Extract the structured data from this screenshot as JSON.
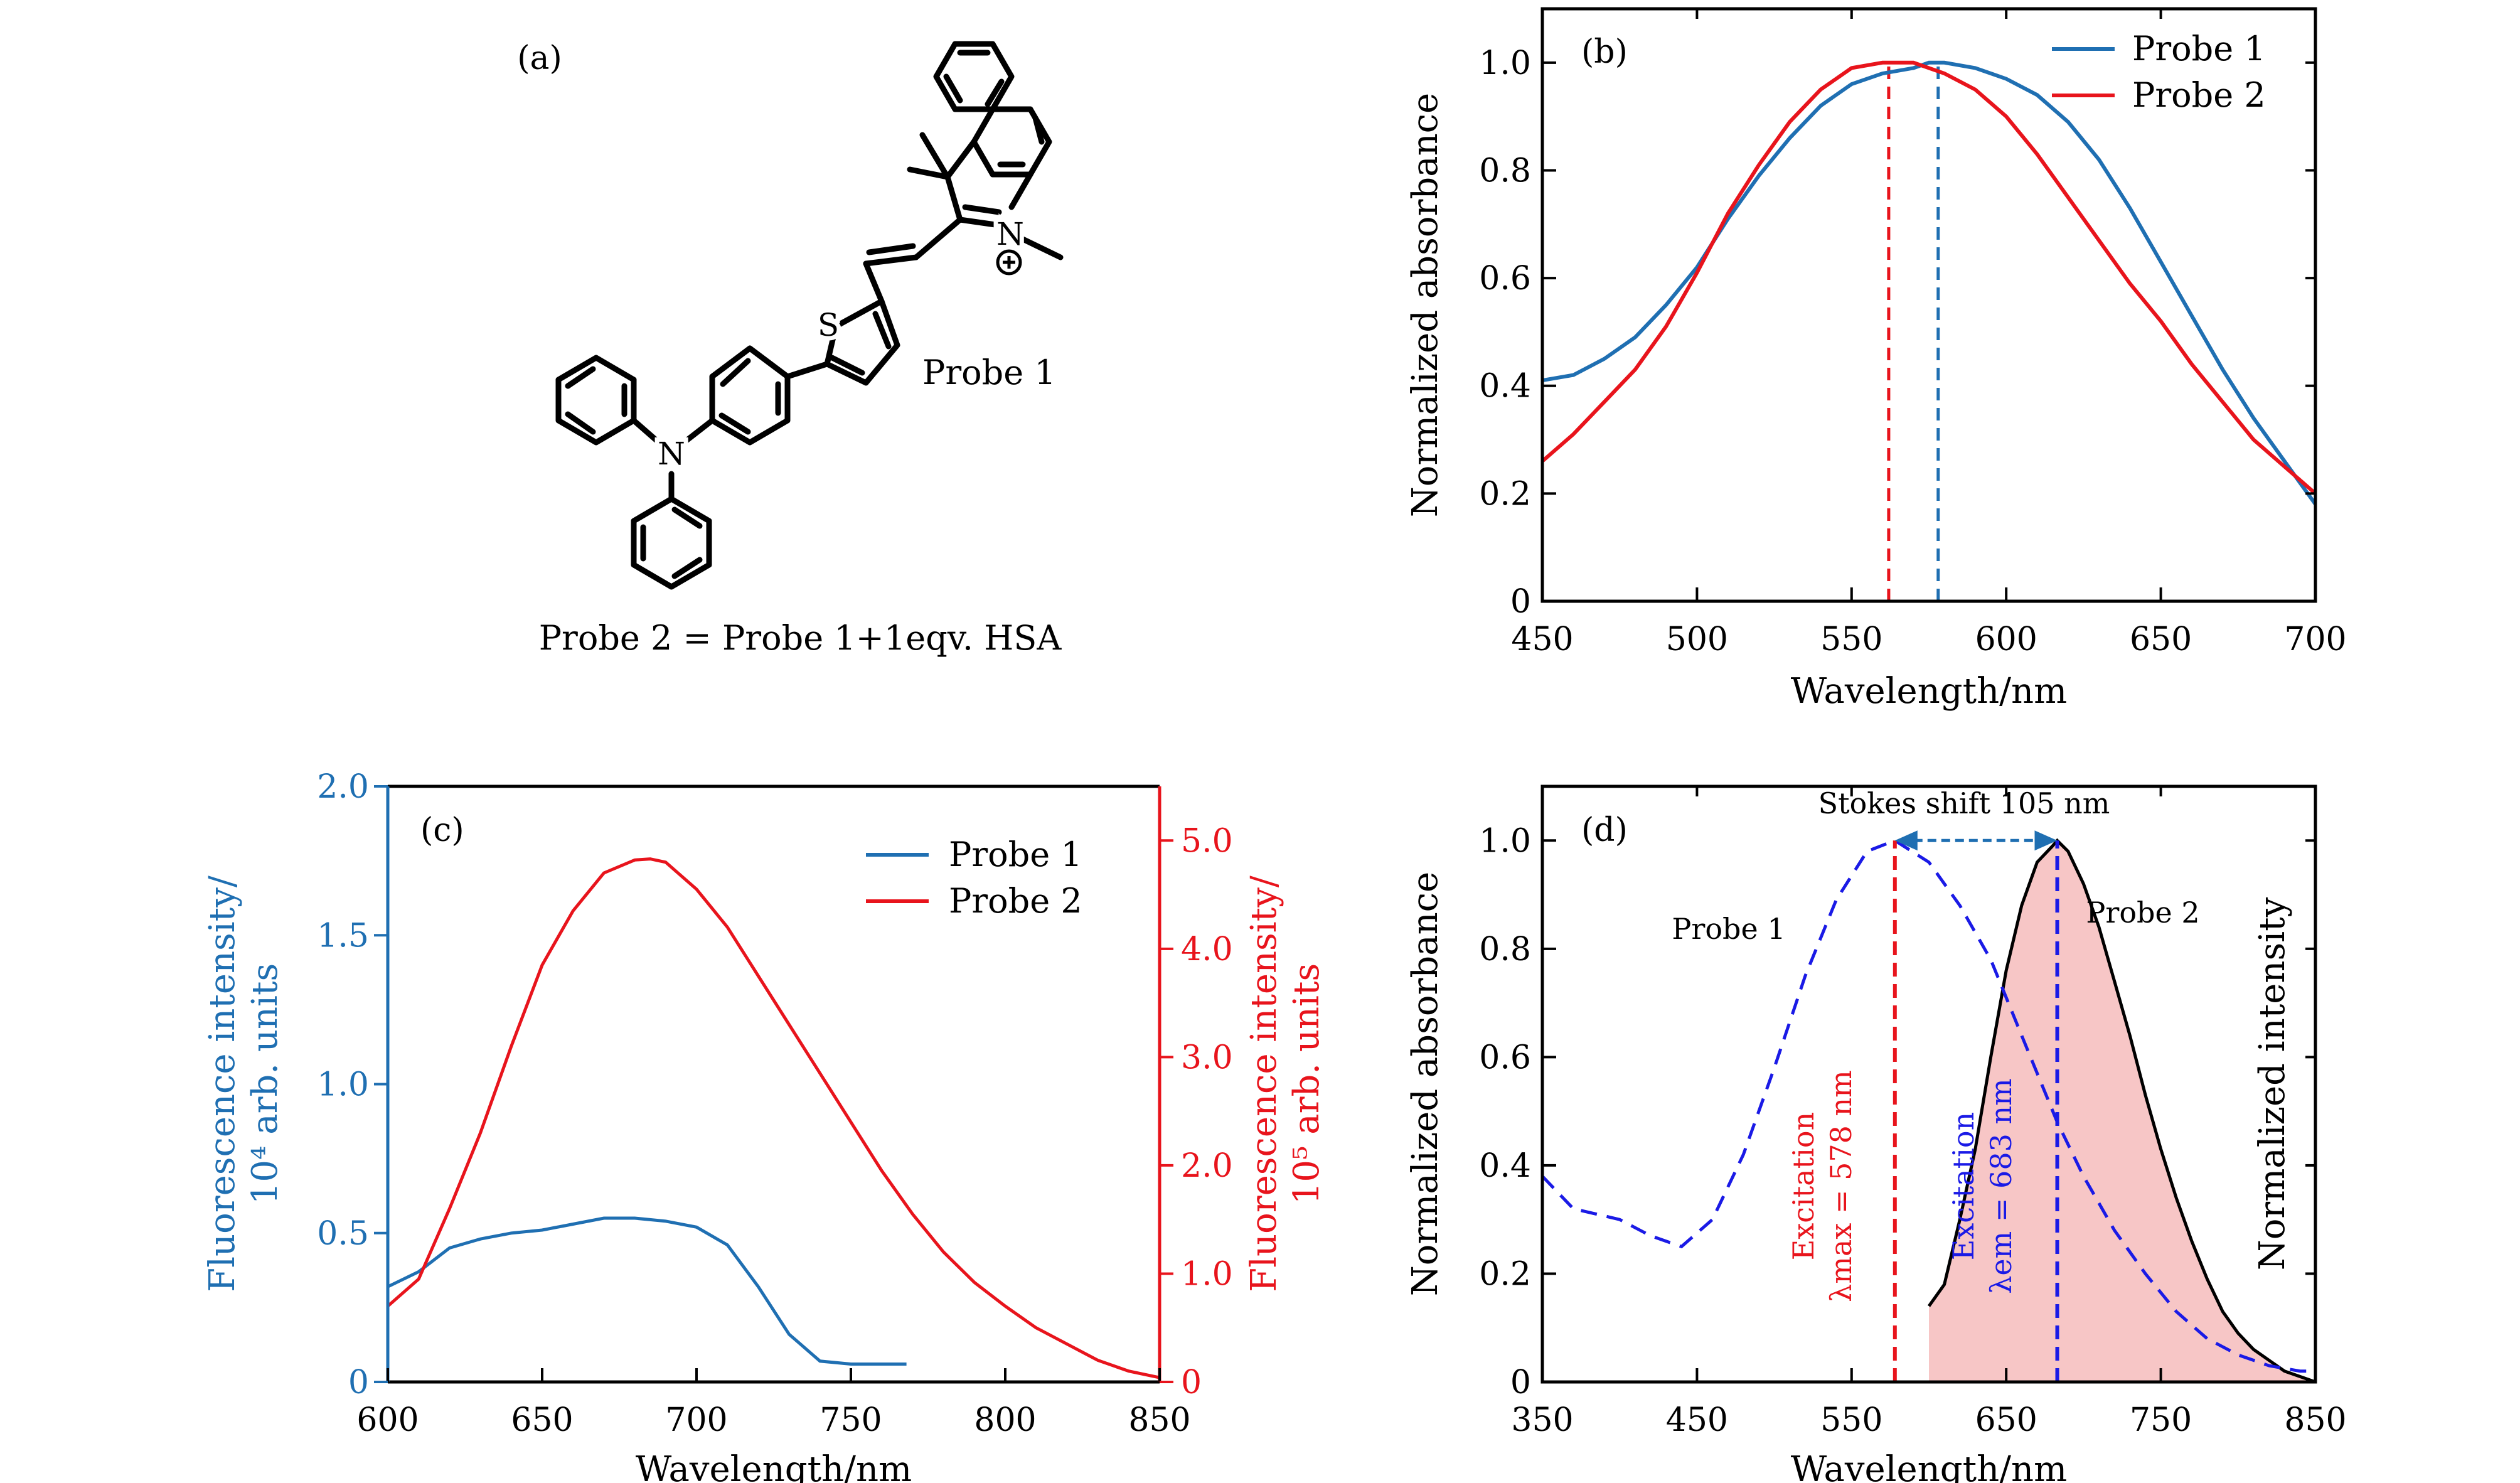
{
  "figure": {
    "panel_a": {
      "label": "(a)",
      "structure_label": "Probe 1",
      "atom_labels": [
        "S",
        "N",
        "N"
      ],
      "footnote": "Probe 2 = Probe 1+1eqv. HSA"
    }
  },
  "colors": {
    "blue": "#1f6fb2",
    "red": "#e8141c",
    "dark_blue": "#1a1ae6",
    "fill_pink": "#f7c6c6",
    "black": "#000000"
  },
  "chart_data": [
    {
      "panel": "b",
      "type": "line",
      "label": "(b)",
      "xlabel": "Wavelength/nm",
      "ylabel": "Normalized absorbance",
      "xlim": [
        450,
        700
      ],
      "ylim": [
        0,
        1.1
      ],
      "xticks": [
        450,
        500,
        550,
        600,
        650,
        700
      ],
      "xtick_labels": [
        "450",
        "500",
        "550",
        "600",
        "650",
        "700"
      ],
      "yticks": [
        0,
        0.2,
        0.4,
        0.6,
        0.8,
        1.0
      ],
      "ytick_labels": [
        "0",
        "0.2",
        "0.4",
        "0.6",
        "0.8",
        "1.0"
      ],
      "legend": "top-right",
      "series": [
        {
          "name": "Probe 1",
          "color": "#1f6fb2",
          "x": [
            450,
            460,
            470,
            480,
            490,
            500,
            510,
            520,
            530,
            540,
            550,
            560,
            570,
            575,
            580,
            590,
            600,
            610,
            620,
            630,
            640,
            650,
            660,
            670,
            680,
            690,
            700
          ],
          "y": [
            0.41,
            0.42,
            0.45,
            0.49,
            0.55,
            0.62,
            0.71,
            0.79,
            0.86,
            0.92,
            0.96,
            0.98,
            0.99,
            1.0,
            1.0,
            0.99,
            0.97,
            0.94,
            0.89,
            0.82,
            0.73,
            0.63,
            0.53,
            0.43,
            0.34,
            0.26,
            0.18
          ]
        },
        {
          "name": "Probe 2",
          "color": "#e8141c",
          "x": [
            450,
            460,
            470,
            480,
            490,
            500,
            510,
            520,
            530,
            540,
            550,
            560,
            565,
            570,
            580,
            590,
            600,
            610,
            620,
            630,
            640,
            650,
            660,
            670,
            680,
            690,
            700
          ],
          "y": [
            0.26,
            0.31,
            0.37,
            0.43,
            0.51,
            0.61,
            0.72,
            0.81,
            0.89,
            0.95,
            0.99,
            1.0,
            1.0,
            1.0,
            0.98,
            0.95,
            0.9,
            0.83,
            0.75,
            0.67,
            0.59,
            0.52,
            0.44,
            0.37,
            0.3,
            0.25,
            0.2
          ]
        }
      ],
      "vlines": [
        {
          "x": 562,
          "y": 1.0,
          "color": "#e8141c"
        },
        {
          "x": 578,
          "y": 1.0,
          "color": "#1f6fb2"
        }
      ]
    },
    {
      "panel": "c",
      "type": "line",
      "label": "(c)",
      "xlabel": "Wavelength/nm",
      "ylabel_left": [
        "Fluorescence intensity/",
        "10⁴ arb. units"
      ],
      "ylabel_right": [
        "Fluorescence intensity/",
        "10⁵ arb. units"
      ],
      "xlim": [
        600,
        850
      ],
      "ylim_left": [
        0,
        2.0
      ],
      "ylim_right": [
        0,
        5.5
      ],
      "xticks": [
        600,
        650,
        700,
        750,
        800,
        850
      ],
      "xtick_labels": [
        "600",
        "650",
        "700",
        "750",
        "800",
        "850"
      ],
      "yticks_left": [
        0,
        0.5,
        1.0,
        1.5,
        2.0
      ],
      "ytick_labels_left": [
        "0",
        "0.5",
        "1.0",
        "1.5",
        "2.0"
      ],
      "yticks_right": [
        0,
        1,
        2,
        3,
        4,
        5
      ],
      "ytick_labels_right": [
        "0",
        "1.0",
        "2.0",
        "3.0",
        "4.0",
        "5.0"
      ],
      "legend": "top-right",
      "series": [
        {
          "name": "Probe 1",
          "color": "#1f6fb2",
          "axis": "left",
          "x": [
            600,
            610,
            620,
            630,
            640,
            650,
            660,
            670,
            680,
            690,
            700,
            710,
            720,
            730,
            740,
            750,
            760,
            768
          ],
          "y": [
            0.32,
            0.37,
            0.45,
            0.48,
            0.5,
            0.51,
            0.53,
            0.55,
            0.55,
            0.54,
            0.52,
            0.46,
            0.32,
            0.16,
            0.07,
            0.06,
            0.06,
            0.06
          ]
        },
        {
          "name": "Probe 2",
          "color": "#e8141c",
          "axis": "right",
          "x": [
            600,
            610,
            620,
            630,
            640,
            650,
            660,
            670,
            680,
            685,
            690,
            700,
            710,
            720,
            730,
            740,
            750,
            760,
            770,
            780,
            790,
            800,
            810,
            820,
            830,
            840,
            850
          ],
          "y": [
            0.7,
            0.95,
            1.6,
            2.3,
            3.1,
            3.85,
            4.35,
            4.7,
            4.82,
            4.83,
            4.8,
            4.55,
            4.2,
            3.75,
            3.3,
            2.85,
            2.4,
            1.95,
            1.55,
            1.2,
            0.92,
            0.7,
            0.5,
            0.35,
            0.2,
            0.1,
            0.04
          ]
        }
      ]
    },
    {
      "panel": "d",
      "type": "line",
      "label": "(d)",
      "xlabel": "Wavelength/nm",
      "ylabel": "Normalized absorbance",
      "ylabel_right": "Normalized intensity",
      "xlim": [
        350,
        850
      ],
      "ylim": [
        0,
        1.1
      ],
      "xticks": [
        350,
        450,
        550,
        650,
        750,
        850
      ],
      "xtick_labels": [
        "350",
        "450",
        "550",
        "650",
        "750",
        "850"
      ],
      "yticks": [
        0,
        0.2,
        0.4,
        0.6,
        0.8,
        1.0
      ],
      "ytick_labels": [
        "0",
        "0.2",
        "0.4",
        "0.6",
        "0.8",
        "1.0"
      ],
      "series": [
        {
          "name": "Probe 1",
          "color": "#1a1ae6",
          "style": "dashed",
          "x": [
            350,
            370,
            400,
            420,
            440,
            460,
            480,
            500,
            520,
            540,
            560,
            578,
            600,
            620,
            640,
            660,
            683,
            700,
            720,
            740,
            760,
            780,
            800,
            820,
            840,
            850
          ],
          "y": [
            0.38,
            0.32,
            0.3,
            0.27,
            0.25,
            0.3,
            0.42,
            0.58,
            0.75,
            0.89,
            0.98,
            1.0,
            0.96,
            0.88,
            0.78,
            0.64,
            0.48,
            0.38,
            0.28,
            0.2,
            0.13,
            0.08,
            0.05,
            0.03,
            0.02,
            0.02
          ]
        },
        {
          "name": "Probe 2",
          "color": "#000000",
          "fill": "#f7c6c6",
          "x": [
            600,
            610,
            620,
            630,
            640,
            650,
            660,
            670,
            680,
            683,
            690,
            700,
            710,
            720,
            730,
            740,
            750,
            760,
            770,
            780,
            790,
            800,
            810,
            820,
            830,
            840,
            850
          ],
          "y": [
            0.14,
            0.18,
            0.3,
            0.43,
            0.6,
            0.76,
            0.88,
            0.96,
            0.99,
            1.0,
            0.98,
            0.92,
            0.84,
            0.74,
            0.64,
            0.53,
            0.43,
            0.34,
            0.26,
            0.19,
            0.13,
            0.09,
            0.06,
            0.04,
            0.02,
            0.01,
            0.0
          ]
        }
      ],
      "annotations": {
        "stokes_label": "Stokes shift 105 nm",
        "probe1_label": "Probe 1",
        "probe2_label": "Probe 2",
        "excitation_left": [
          "Excitation",
          "λmax = 578 nm"
        ],
        "excitation_right": [
          "Excitation",
          "λem = 683 nm"
        ]
      },
      "vlines": [
        {
          "x": 578,
          "y": 1.0,
          "color": "#e8141c"
        },
        {
          "x": 683,
          "y": 1.0,
          "color": "#1a1ae6"
        }
      ]
    }
  ]
}
